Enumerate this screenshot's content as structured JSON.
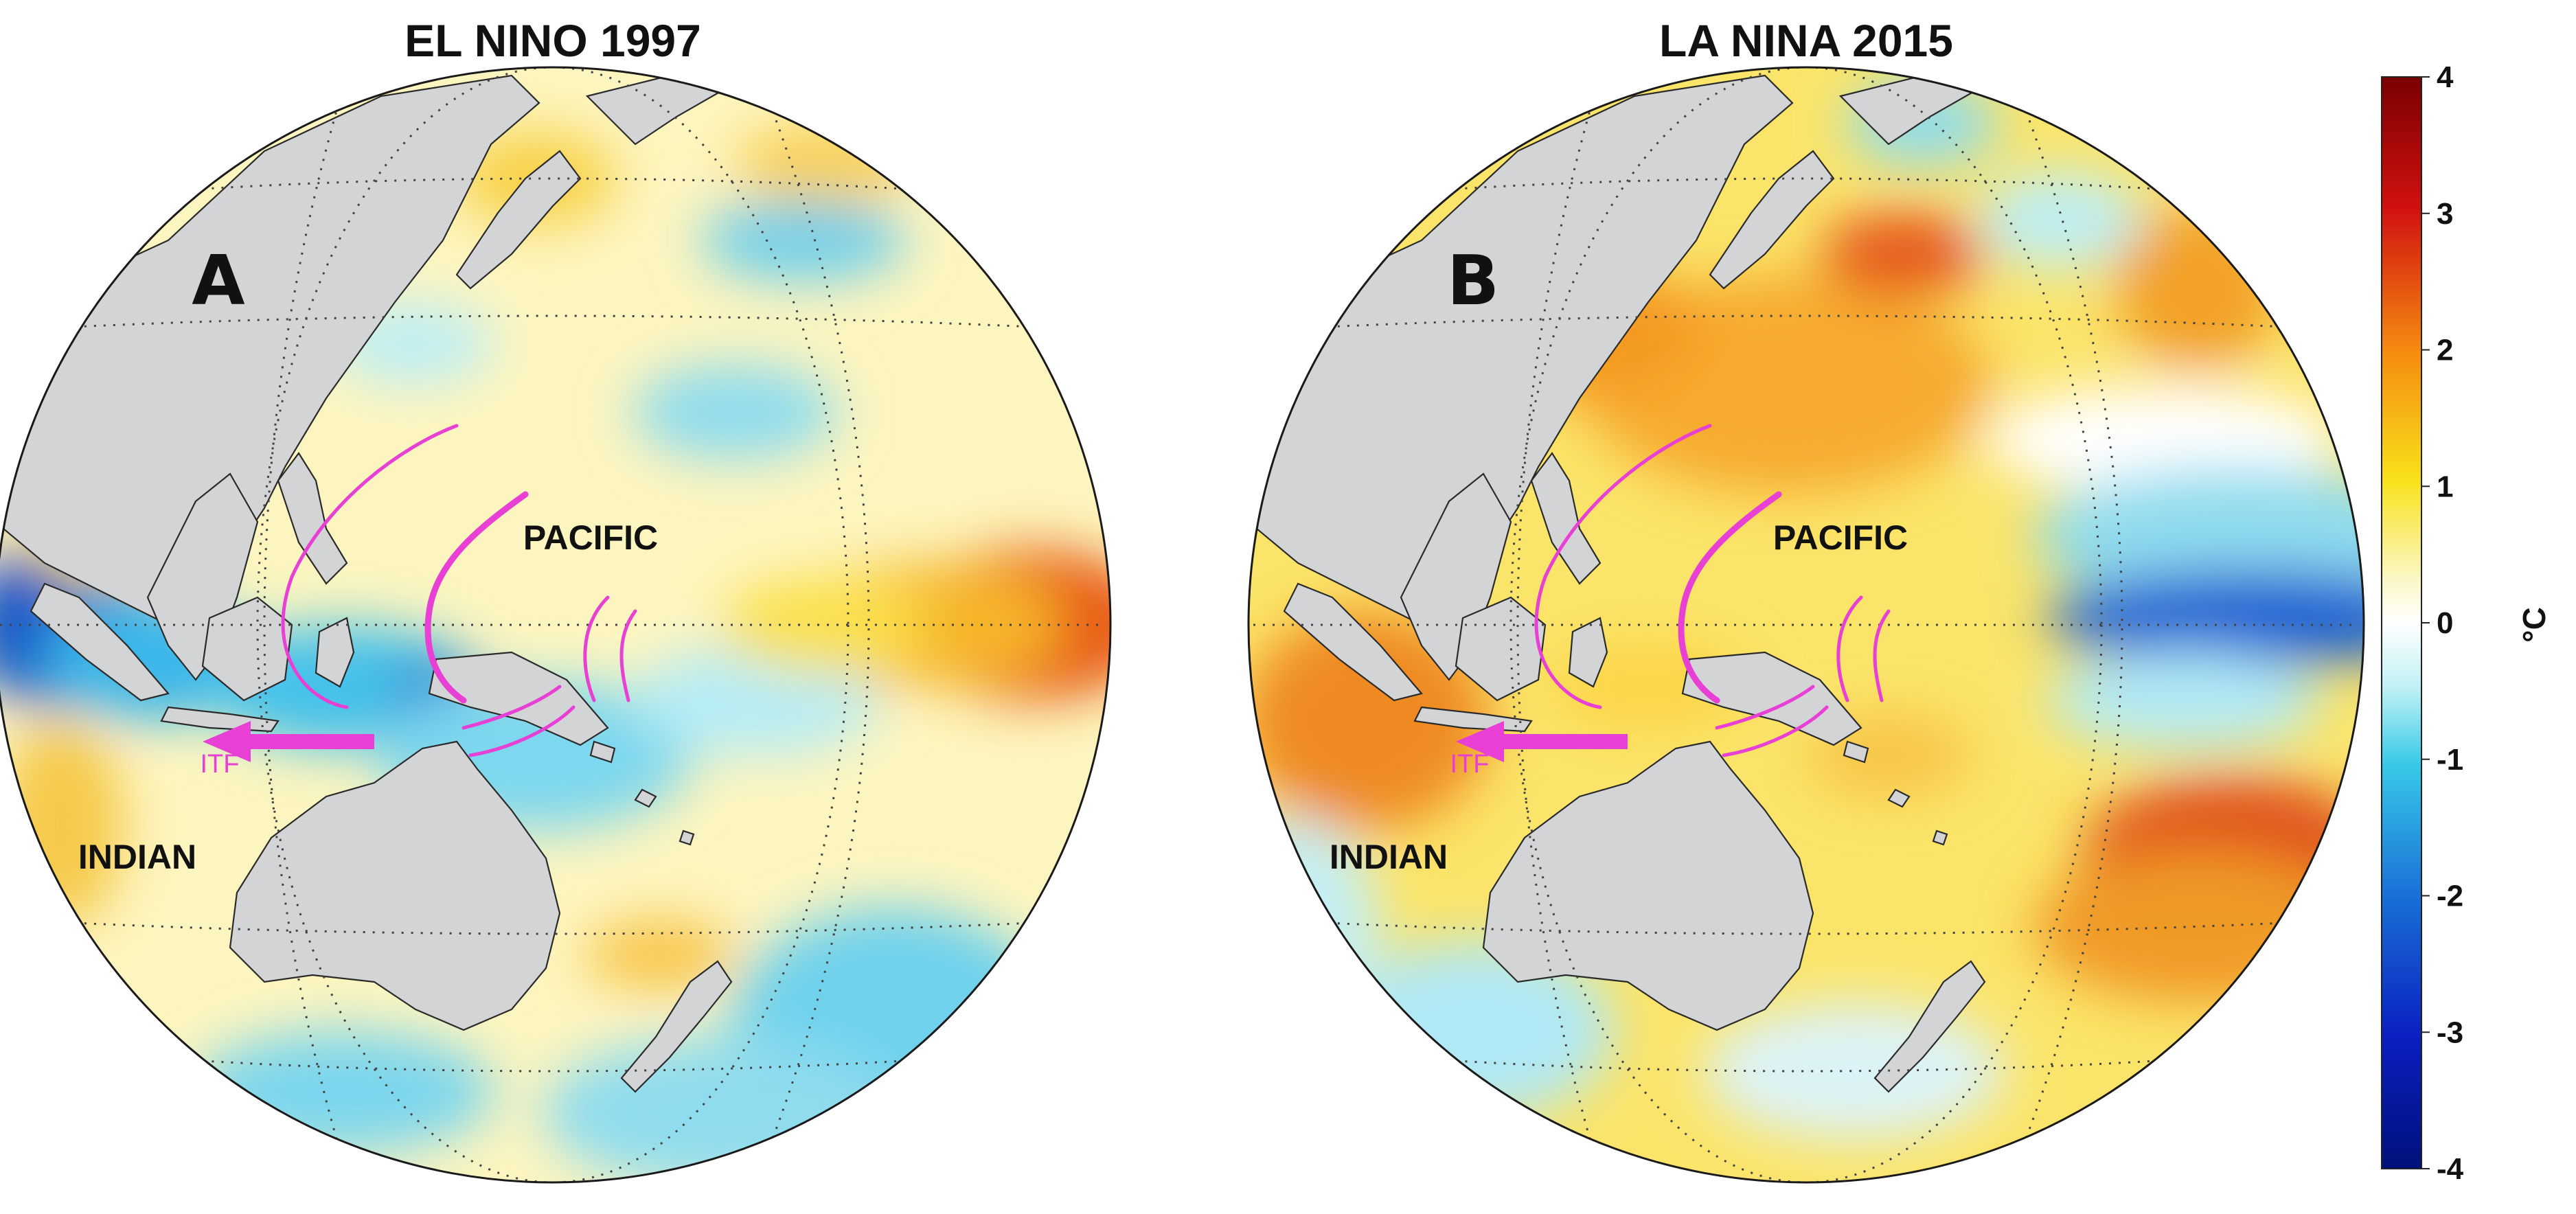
{
  "figure": {
    "panels": [
      {
        "id": "A",
        "title": "EL NINO 1997",
        "letter": "A",
        "ocean_labels": {
          "pacific": "PACIFIC",
          "indian": "INDIAN"
        },
        "itf_label": "ITF",
        "anomaly_pattern": "Cold anomaly in the eastern Indian Ocean and Indonesian seas; warm anomaly in the eastern equatorial Pacific"
      },
      {
        "id": "B",
        "title": "LA NINA 2015",
        "letter": "B",
        "ocean_labels": {
          "pacific": "PACIFIC",
          "indian": "INDIAN"
        },
        "itf_label": "ITF",
        "anomaly_pattern": "Warm anomaly across the western Pacific and eastern Indian Ocean; cold tongue in the eastern equatorial Pacific"
      }
    ],
    "colorbar": {
      "unit": "°C",
      "ticks": [
        "4",
        "3",
        "2",
        "1",
        "0",
        "-1",
        "-2",
        "-3",
        "-4"
      ],
      "range": [
        -4,
        4
      ]
    },
    "colors": {
      "land": "#d3d4d6",
      "itf_arrow": "#e83fd4",
      "cold": "#1c62c8",
      "warm": "#d2381c",
      "neutral": "#fdf7d6"
    }
  }
}
